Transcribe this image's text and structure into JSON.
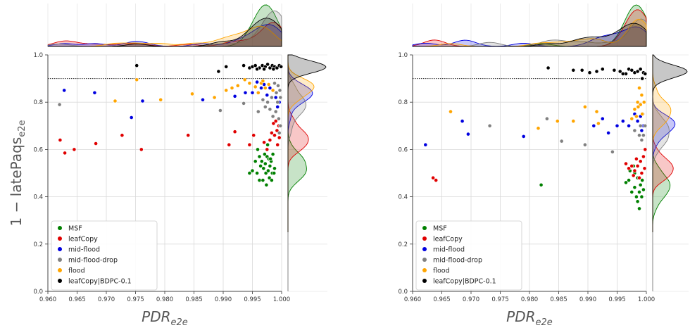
{
  "chart_data": [
    {
      "type": "scatter",
      "title": "",
      "xlabel": "PDR",
      "xlabel_sub": "e2e",
      "ylabel": "1 − latePaqs",
      "ylabel_sub": "e2e",
      "xlim": [
        0.96,
        1.0
      ],
      "ylim": [
        0.0,
        1.0
      ],
      "xticks": [
        "0.960",
        "0.965",
        "0.970",
        "0.975",
        "0.980",
        "0.985",
        "0.990",
        "0.995",
        "1.000"
      ],
      "yticks": [
        "0.0",
        "0.2",
        "0.4",
        "0.6",
        "0.8",
        "1.0"
      ],
      "threshold": 0.9,
      "grid": true,
      "legend_position": "lower-left",
      "marginals": "kde on top (x) and right (y)",
      "series": [
        {
          "name": "MSF",
          "color": "#008000",
          "points": [
            [
              0.9962,
              0.57
            ],
            [
              0.9966,
              0.55
            ],
            [
              0.9971,
              0.58
            ],
            [
              0.9975,
              0.57
            ],
            [
              0.9978,
              0.56
            ],
            [
              0.9982,
              0.55
            ],
            [
              0.9985,
              0.58
            ],
            [
              0.9964,
              0.53
            ],
            [
              0.9969,
              0.52
            ],
            [
              0.9973,
              0.5
            ],
            [
              0.9977,
              0.51
            ],
            [
              0.998,
              0.53
            ],
            [
              0.9984,
              0.5
            ],
            [
              0.9988,
              0.52
            ],
            [
              0.9958,
              0.5
            ],
            [
              0.9962,
              0.47
            ],
            [
              0.9968,
              0.47
            ],
            [
              0.9974,
              0.45
            ],
            [
              0.9979,
              0.48
            ],
            [
              0.9983,
              0.47
            ],
            [
              0.9987,
              0.5
            ],
            [
              0.995,
              0.51
            ],
            [
              0.9945,
              0.5
            ],
            [
              0.9955,
              0.55
            ],
            [
              0.9959,
              0.6
            ],
            [
              0.9976,
              0.62
            ],
            [
              0.9981,
              0.56
            ],
            [
              0.9972,
              0.54
            ]
          ]
        },
        {
          "name": "leafCopy",
          "color": "#e00000",
          "points": [
            [
              0.9621,
              0.64
            ],
            [
              0.9629,
              0.585
            ],
            [
              0.9645,
              0.6
            ],
            [
              0.9682,
              0.625
            ],
            [
              0.9727,
              0.66
            ],
            [
              0.976,
              0.6
            ],
            [
              0.984,
              0.66
            ],
            [
              0.991,
              0.62
            ],
            [
              0.992,
              0.675
            ],
            [
              0.9945,
              0.62
            ],
            [
              0.9952,
              0.66
            ],
            [
              0.9985,
              0.74
            ],
            [
              0.999,
              0.72
            ],
            [
              0.9995,
              0.7
            ],
            [
              0.9992,
              0.68
            ],
            [
              0.9988,
              0.66
            ],
            [
              0.9996,
              0.65
            ],
            [
              0.9993,
              0.62
            ],
            [
              0.998,
              0.64
            ],
            [
              0.9975,
              0.6
            ],
            [
              0.9983,
              0.67
            ],
            [
              0.997,
              0.63
            ],
            [
              0.9986,
              0.71
            ]
          ]
        },
        {
          "name": "mid-flood",
          "color": "#0000e0",
          "points": [
            [
              0.9628,
              0.85
            ],
            [
              0.968,
              0.84
            ],
            [
              0.9743,
              0.735
            ],
            [
              0.9762,
              0.805
            ],
            [
              0.9865,
              0.81
            ],
            [
              0.992,
              0.825
            ],
            [
              0.9938,
              0.84
            ],
            [
              0.995,
              0.84
            ],
            [
              0.9958,
              0.885
            ],
            [
              0.997,
              0.875
            ],
            [
              0.998,
              0.86
            ],
            [
              0.9985,
              0.85
            ],
            [
              0.999,
              0.82
            ],
            [
              0.9996,
              0.8
            ],
            [
              0.9993,
              0.78
            ],
            [
              0.9975,
              0.83
            ],
            [
              0.9965,
              0.86
            ]
          ]
        },
        {
          "name": "mid-flood-drop",
          "color": "#808080",
          "points": [
            [
              0.962,
              0.79
            ],
            [
              0.9895,
              0.765
            ],
            [
              0.9935,
              0.795
            ],
            [
              0.996,
              0.76
            ],
            [
              0.9968,
              0.81
            ],
            [
              0.9972,
              0.78
            ],
            [
              0.998,
              0.77
            ],
            [
              0.9985,
              0.74
            ],
            [
              0.999,
              0.76
            ],
            [
              0.9995,
              0.73
            ],
            [
              0.9993,
              0.8
            ],
            [
              0.9998,
              0.82
            ],
            [
              0.9997,
              0.85
            ],
            [
              0.9994,
              0.87
            ],
            [
              0.9991,
              0.84
            ],
            [
              0.9988,
              0.88
            ],
            [
              0.9976,
              0.8
            ],
            [
              0.9983,
              0.82
            ],
            [
              0.9998,
              0.7
            ],
            [
              0.9996,
              0.67
            ]
          ]
        },
        {
          "name": "flood",
          "color": "#ffa500",
          "points": [
            [
              0.9715,
              0.805
            ],
            [
              0.9752,
              0.895
            ],
            [
              0.9793,
              0.81
            ],
            [
              0.9847,
              0.835
            ],
            [
              0.9885,
              0.82
            ],
            [
              0.9905,
              0.85
            ],
            [
              0.9915,
              0.86
            ],
            [
              0.9925,
              0.87
            ],
            [
              0.9937,
              0.895
            ],
            [
              0.9945,
              0.88
            ],
            [
              0.9955,
              0.865
            ],
            [
              0.996,
              0.84
            ],
            [
              0.9965,
              0.88
            ],
            [
              0.9972,
              0.86
            ],
            [
              0.9978,
              0.875
            ],
            [
              0.9985,
              0.85
            ],
            [
              0.9968,
              0.89
            ]
          ]
        },
        {
          "name": "leafCopy|BDPC-0.1",
          "color": "#000000",
          "points": [
            [
              0.9752,
              0.955
            ],
            [
              0.9892,
              0.93
            ],
            [
              0.9905,
              0.95
            ],
            [
              0.9935,
              0.955
            ],
            [
              0.9945,
              0.945
            ],
            [
              0.995,
              0.95
            ],
            [
              0.9955,
              0.955
            ],
            [
              0.9962,
              0.945
            ],
            [
              0.9967,
              0.955
            ],
            [
              0.9972,
              0.95
            ],
            [
              0.9976,
              0.96
            ],
            [
              0.998,
              0.945
            ],
            [
              0.9984,
              0.955
            ],
            [
              0.9988,
              0.95
            ],
            [
              0.9992,
              0.945
            ],
            [
              0.9996,
              0.955
            ],
            [
              0.9999,
              0.95
            ],
            [
              0.9958,
              0.94
            ],
            [
              0.997,
              0.94
            ],
            [
              0.9986,
              0.94
            ]
          ]
        }
      ]
    },
    {
      "type": "scatter",
      "title": "",
      "xlabel": "PDR",
      "xlabel_sub": "e2e",
      "ylabel": "",
      "ylabel_sub": "",
      "xlim": [
        0.96,
        1.0
      ],
      "ylim": [
        0.0,
        1.0
      ],
      "xticks": [
        "0.960",
        "0.965",
        "0.970",
        "0.975",
        "0.980",
        "0.985",
        "0.990",
        "0.995",
        "1.000"
      ],
      "yticks": [
        "0.0",
        "0.2",
        "0.4",
        "0.6",
        "0.8",
        "1.0"
      ],
      "threshold": 0.9,
      "grid": true,
      "legend_position": "lower-left",
      "marginals": "kde on top (x) and right (y)",
      "series": [
        {
          "name": "MSF",
          "color": "#008000",
          "points": [
            [
              0.982,
              0.45
            ],
            [
              0.997,
              0.47
            ],
            [
              0.998,
              0.5
            ],
            [
              0.9985,
              0.48
            ],
            [
              0.999,
              0.45
            ],
            [
              0.9988,
              0.42
            ],
            [
              0.9992,
              0.4
            ],
            [
              0.9995,
              0.43
            ],
            [
              0.9985,
              0.38
            ],
            [
              0.9988,
              0.35
            ],
            [
              0.9975,
              0.42
            ],
            [
              0.998,
              0.44
            ],
            [
              0.9965,
              0.46
            ],
            [
              0.9972,
              0.51
            ],
            [
              0.9978,
              0.53
            ],
            [
              0.9993,
              0.47
            ],
            [
              0.9983,
              0.4
            ]
          ]
        },
        {
          "name": "leafCopy",
          "color": "#e00000",
          "points": [
            [
              0.9635,
              0.48
            ],
            [
              0.964,
              0.47
            ],
            [
              0.9965,
              0.54
            ],
            [
              0.997,
              0.52
            ],
            [
              0.9975,
              0.53
            ],
            [
              0.998,
              0.51
            ],
            [
              0.9985,
              0.53
            ],
            [
              0.999,
              0.55
            ],
            [
              0.9995,
              0.57
            ],
            [
              0.9998,
              0.6
            ],
            [
              0.9992,
              0.5
            ],
            [
              0.9988,
              0.48
            ],
            [
              0.9997,
              0.52
            ],
            [
              0.9978,
              0.49
            ],
            [
              0.9983,
              0.56
            ]
          ]
        },
        {
          "name": "mid-flood",
          "color": "#0000e0",
          "points": [
            [
              0.9622,
              0.62
            ],
            [
              0.9685,
              0.72
            ],
            [
              0.9695,
              0.665
            ],
            [
              0.979,
              0.655
            ],
            [
              0.991,
              0.7
            ],
            [
              0.9925,
              0.73
            ],
            [
              0.9935,
              0.67
            ],
            [
              0.995,
              0.7
            ],
            [
              0.996,
              0.72
            ],
            [
              0.997,
              0.7
            ],
            [
              0.998,
              0.75
            ],
            [
              0.9985,
              0.72
            ],
            [
              0.999,
              0.74
            ],
            [
              0.9995,
              0.7
            ],
            [
              0.9992,
              0.68
            ]
          ]
        },
        {
          "name": "mid-flood-drop",
          "color": "#808080",
          "points": [
            [
              0.9732,
              0.7
            ],
            [
              0.983,
              0.73
            ],
            [
              0.9855,
              0.635
            ],
            [
              0.9895,
              0.62
            ],
            [
              0.9942,
              0.59
            ],
            [
              0.998,
              0.68
            ],
            [
              0.9988,
              0.66
            ],
            [
              0.9992,
              0.64
            ],
            [
              0.9995,
              0.66
            ],
            [
              0.9998,
              0.7
            ],
            [
              0.9994,
              0.75
            ],
            [
              0.999,
              0.7
            ]
          ]
        },
        {
          "name": "flood",
          "color": "#ffa500",
          "points": [
            [
              0.9665,
              0.76
            ],
            [
              0.9815,
              0.69
            ],
            [
              0.9848,
              0.72
            ],
            [
              0.9875,
              0.72
            ],
            [
              0.9895,
              0.78
            ],
            [
              0.9915,
              0.76
            ],
            [
              0.9918,
              0.71
            ],
            [
              0.9975,
              0.73
            ],
            [
              0.998,
              0.77
            ],
            [
              0.9985,
              0.8
            ],
            [
              0.9988,
              0.86
            ],
            [
              0.999,
              0.79
            ],
            [
              0.9993,
              0.75
            ],
            [
              0.9996,
              0.8
            ],
            [
              0.9992,
              0.83
            ],
            [
              0.9983,
              0.74
            ],
            [
              0.9986,
              0.78
            ]
          ]
        },
        {
          "name": "leafCopy|BDPC-0.1",
          "color": "#000000",
          "points": [
            [
              0.9832,
              0.945
            ],
            [
              0.9875,
              0.935
            ],
            [
              0.989,
              0.935
            ],
            [
              0.9915,
              0.93
            ],
            [
              0.9925,
              0.94
            ],
            [
              0.9945,
              0.935
            ],
            [
              0.9955,
              0.93
            ],
            [
              0.9965,
              0.92
            ],
            [
              0.997,
              0.94
            ],
            [
              0.9975,
              0.935
            ],
            [
              0.998,
              0.925
            ],
            [
              0.9985,
              0.93
            ],
            [
              0.999,
              0.94
            ],
            [
              0.9995,
              0.925
            ],
            [
              0.9998,
              0.92
            ],
            [
              0.9993,
              0.9
            ],
            [
              0.9903,
              0.925
            ],
            [
              0.996,
              0.92
            ]
          ]
        }
      ]
    }
  ]
}
